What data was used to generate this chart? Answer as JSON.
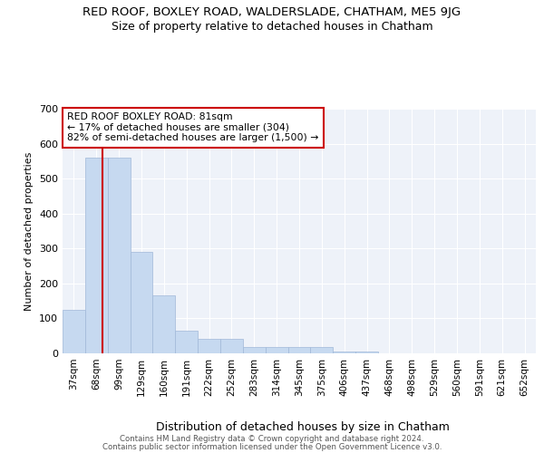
{
  "title": "RED ROOF, BOXLEY ROAD, WALDERSLADE, CHATHAM, ME5 9JG",
  "subtitle": "Size of property relative to detached houses in Chatham",
  "xlabel": "Distribution of detached houses by size in Chatham",
  "ylabel": "Number of detached properties",
  "bar_labels": [
    "37sqm",
    "68sqm",
    "99sqm",
    "129sqm",
    "160sqm",
    "191sqm",
    "222sqm",
    "252sqm",
    "283sqm",
    "314sqm",
    "345sqm",
    "375sqm",
    "406sqm",
    "437sqm",
    "468sqm",
    "498sqm",
    "529sqm",
    "560sqm",
    "591sqm",
    "621sqm",
    "652sqm"
  ],
  "bar_values": [
    125,
    560,
    560,
    290,
    165,
    65,
    42,
    42,
    18,
    18,
    18,
    18,
    5,
    5,
    0,
    0,
    0,
    0,
    0,
    0,
    0
  ],
  "bar_color": "#c6d9f0",
  "bar_edgecolor": "#a0b8d8",
  "ylim": [
    0,
    700
  ],
  "yticks": [
    0,
    100,
    200,
    300,
    400,
    500,
    600,
    700
  ],
  "annotation_text": "RED ROOF BOXLEY ROAD: 81sqm\n← 17% of detached houses are smaller (304)\n82% of semi-detached houses are larger (1,500) →",
  "vline_x": 1.25,
  "vline_color": "#cc0000",
  "annotation_box_color": "#cc0000",
  "footer1": "Contains HM Land Registry data © Crown copyright and database right 2024.",
  "footer2": "Contains public sector information licensed under the Open Government Licence v3.0.",
  "background_color": "#eef2f9",
  "grid_color": "#ffffff"
}
